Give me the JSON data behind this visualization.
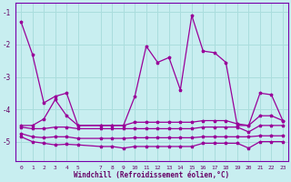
{
  "xlabel": "Windchill (Refroidissement éolien,°C)",
  "ylabel": "",
  "background_color": "#c8eef0",
  "line_color": "#990099",
  "grid_color": "#aadddd",
  "xlim": [
    -0.5,
    23.5
  ],
  "ylim": [
    -5.6,
    -0.7
  ],
  "xticks": [
    0,
    1,
    2,
    3,
    4,
    5,
    7,
    8,
    9,
    10,
    11,
    12,
    13,
    14,
    15,
    16,
    17,
    18,
    19,
    20,
    21,
    22,
    23
  ],
  "yticks": [
    -1,
    -2,
    -3,
    -4,
    -5
  ],
  "line1_x": [
    0,
    1,
    2,
    3,
    4,
    5,
    7,
    8,
    9,
    10,
    11,
    12,
    13,
    14,
    15,
    16,
    17,
    18,
    19,
    20,
    21,
    22,
    23
  ],
  "line1_y": [
    -1.3,
    -2.3,
    -3.8,
    -3.6,
    -3.5,
    -4.5,
    -4.5,
    -4.5,
    -4.5,
    -3.6,
    -2.05,
    -2.55,
    -2.4,
    -3.4,
    -1.1,
    -2.2,
    -2.25,
    -2.55,
    -4.5,
    -4.5,
    -3.5,
    -3.55,
    -4.35
  ],
  "line2_x": [
    0,
    1,
    2,
    3,
    4,
    5,
    7,
    8,
    9,
    10,
    11,
    12,
    13,
    14,
    15,
    16,
    17,
    18,
    19,
    20,
    21,
    22,
    23
  ],
  "line2_y": [
    -4.5,
    -4.5,
    -4.3,
    -3.7,
    -4.2,
    -4.5,
    -4.5,
    -4.5,
    -4.5,
    -4.4,
    -4.4,
    -4.4,
    -4.4,
    -4.4,
    -4.4,
    -4.35,
    -4.35,
    -4.35,
    -4.45,
    -4.5,
    -4.2,
    -4.2,
    -4.35
  ],
  "line3_x": [
    0,
    1,
    2,
    3,
    4,
    5,
    7,
    8,
    9,
    10,
    11,
    12,
    13,
    14,
    15,
    16,
    17,
    18,
    19,
    20,
    21,
    22,
    23
  ],
  "line3_y": [
    -4.55,
    -4.6,
    -4.6,
    -4.55,
    -4.55,
    -4.6,
    -4.6,
    -4.6,
    -4.6,
    -4.6,
    -4.6,
    -4.6,
    -4.6,
    -4.6,
    -4.6,
    -4.55,
    -4.55,
    -4.55,
    -4.55,
    -4.7,
    -4.5,
    -4.5,
    -4.5
  ],
  "line4_x": [
    0,
    1,
    2,
    3,
    4,
    5,
    7,
    8,
    9,
    10,
    11,
    12,
    13,
    14,
    15,
    16,
    17,
    18,
    19,
    20,
    21,
    22,
    23
  ],
  "line4_y": [
    -4.75,
    -4.85,
    -4.88,
    -4.85,
    -4.85,
    -4.9,
    -4.9,
    -4.9,
    -4.9,
    -4.88,
    -4.88,
    -4.88,
    -4.88,
    -4.88,
    -4.88,
    -4.85,
    -4.85,
    -4.85,
    -4.85,
    -4.85,
    -4.82,
    -4.82,
    -4.82
  ],
  "line5_x": [
    0,
    1,
    2,
    3,
    4,
    5,
    7,
    8,
    9,
    10,
    11,
    12,
    13,
    14,
    15,
    16,
    17,
    18,
    19,
    20,
    21,
    22,
    23
  ],
  "line5_y": [
    -4.85,
    -5.0,
    -5.05,
    -5.1,
    -5.08,
    -5.1,
    -5.15,
    -5.15,
    -5.2,
    -5.15,
    -5.15,
    -5.15,
    -5.15,
    -5.15,
    -5.15,
    -5.05,
    -5.05,
    -5.05,
    -5.05,
    -5.2,
    -5.0,
    -5.0,
    -5.0
  ]
}
